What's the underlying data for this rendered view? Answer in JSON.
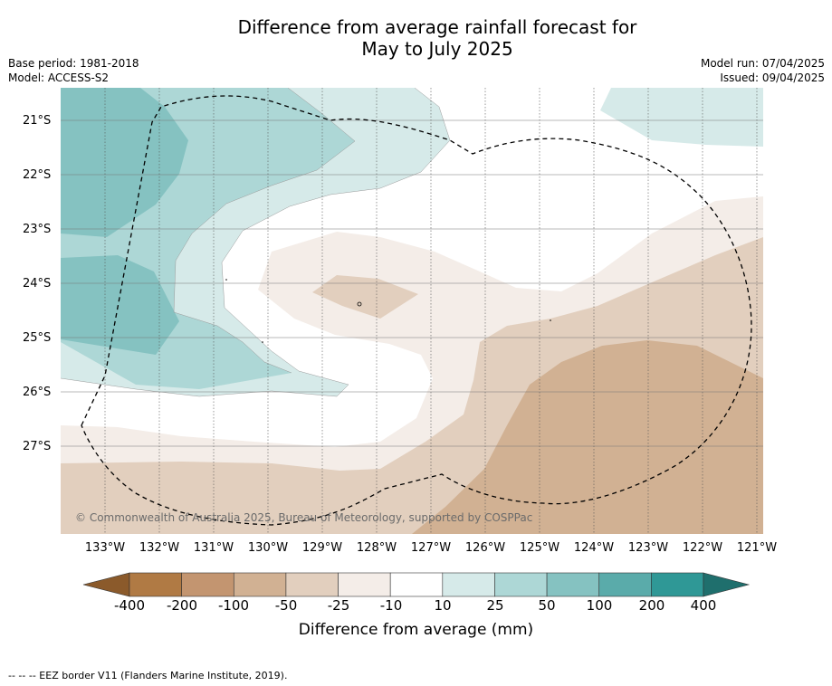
{
  "header": {
    "title_line1": "Difference from average rainfall forecast for",
    "title_line2": "May to July 2025",
    "base_period": "Base period: 1981-2018",
    "model": "Model: ACCESS-S2",
    "model_run": "Model run: 07/04/2025",
    "issued": "Issued: 09/04/2025"
  },
  "map": {
    "lat_labels": [
      "21°S",
      "22°S",
      "23°S",
      "24°S",
      "25°S",
      "26°S",
      "27°S"
    ],
    "lon_labels": [
      "133°W",
      "132°W",
      "131°W",
      "130°W",
      "129°W",
      "128°W",
      "127°W",
      "126°W",
      "125°W",
      "124°W",
      "123°W",
      "122°W",
      "121°W"
    ],
    "copyright": "© Commonwealth of Australia 2025, Bureau of Meteorology, supported by COSPPac",
    "eez_boundary": "EEZ border",
    "colors": {
      "dry_25": "#f4ede8",
      "dry_50": "#e2cfbe",
      "dry_100": "#d1b193",
      "wet_10": "#d6eae9",
      "wet_25": "#add7d6",
      "wet_50": "#85c2c1"
    }
  },
  "colorbar": {
    "ticks": [
      "-400",
      "-200",
      "-100",
      "-50",
      "-25",
      "-10",
      "10",
      "25",
      "50",
      "100",
      "200",
      "400"
    ],
    "colors": [
      "#8b5a2b",
      "#b07a44",
      "#c39570",
      "#d1b193",
      "#e2cfbe",
      "#f4ede8",
      "#ffffff",
      "#d6eae9",
      "#add7d6",
      "#85c2c1",
      "#5aabaa",
      "#2f9896",
      "#1f6f6d"
    ],
    "label": "Difference from average (mm)"
  },
  "footnote": "--  --  -- EEZ border V11 (Flanders Marine Institute, 2019)."
}
